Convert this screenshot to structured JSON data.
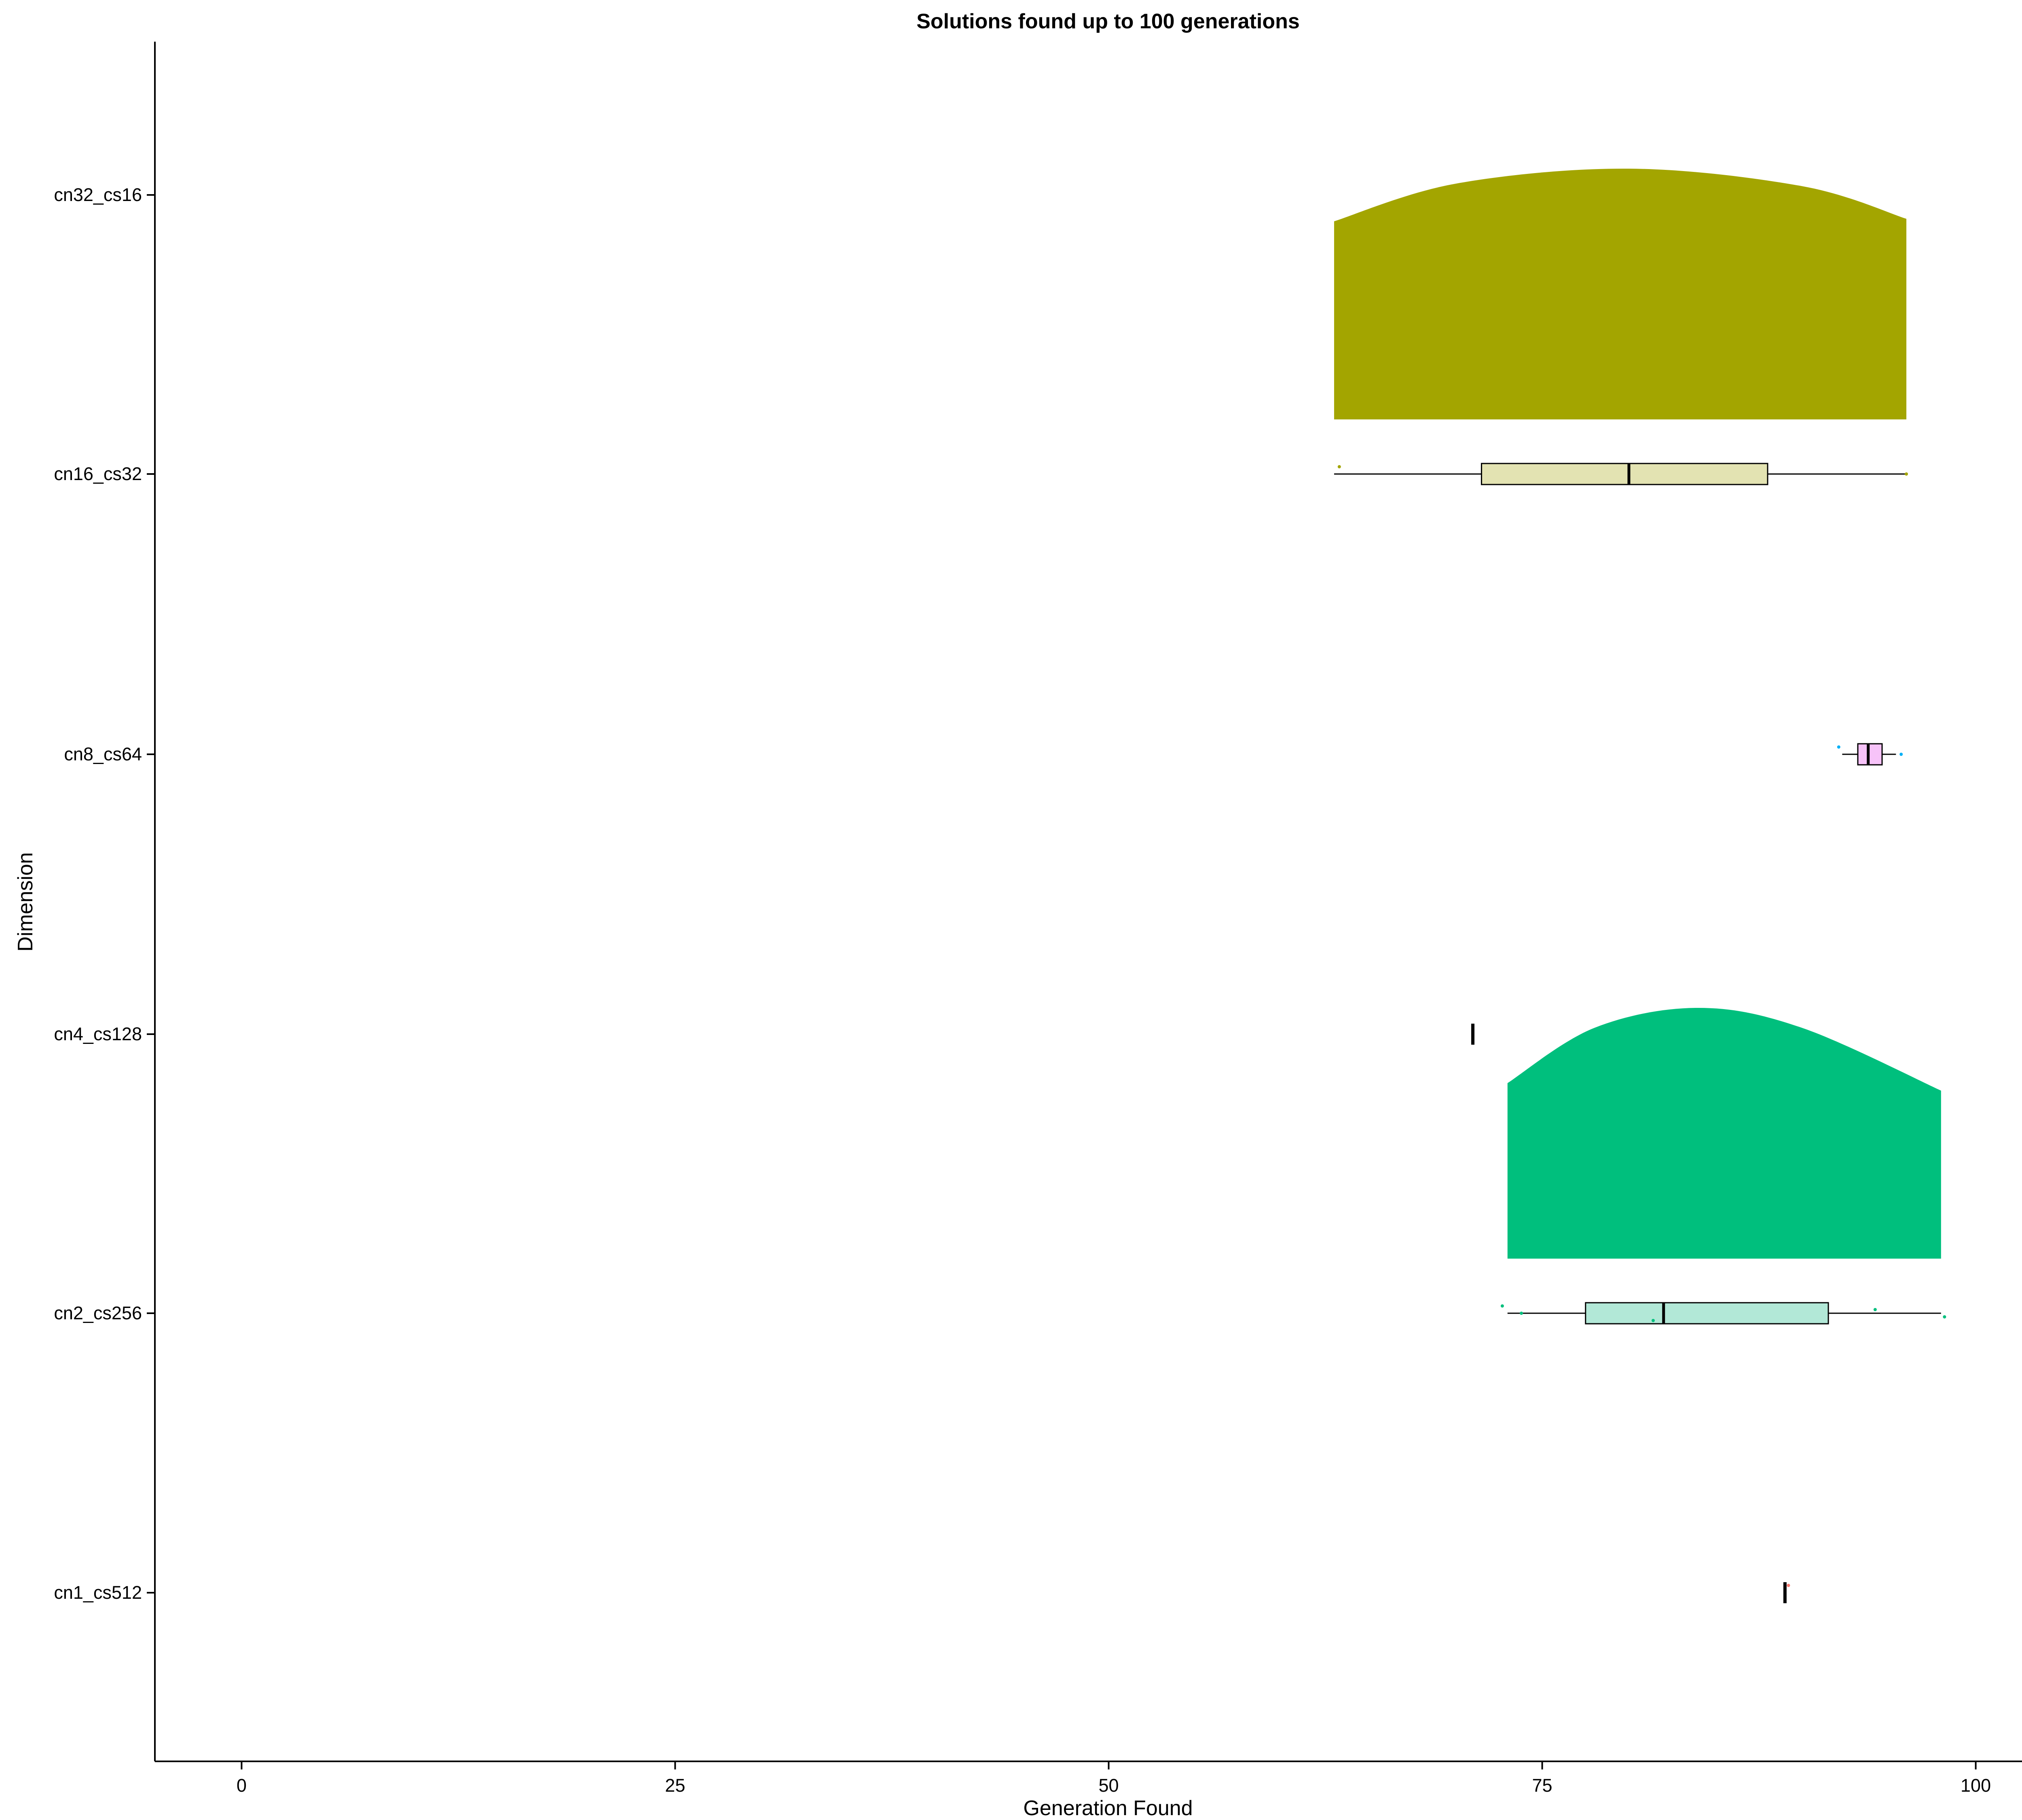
{
  "chart_data": {
    "type": "raincloud",
    "title": "Solutions found up to 100 generations",
    "xlabel": "Generation Found",
    "ylabel": "Dimension",
    "xlim": [
      -5,
      105
    ],
    "x_ticks": [
      0,
      25,
      50,
      75,
      100
    ],
    "x_tick_labels": [
      "0",
      "25",
      "50",
      "75",
      "100"
    ],
    "grid": false,
    "legend": "none",
    "categories": [
      "cn32_cs16",
      "cn16_cs32",
      "cn8_cs64",
      "cn4_cs128",
      "cn2_cs256",
      "cn1_cs512"
    ],
    "series": [
      {
        "category": "cn16_cs32",
        "density": {
          "color": "#a3a500",
          "x": [
            63,
            70,
            80,
            90,
            96
          ],
          "height": [
            0.79,
            0.94,
            1.0,
            0.93,
            0.8
          ]
        },
        "box": {
          "color": "#e3e3b2",
          "min": 63,
          "q1": 71.5,
          "median": 80,
          "q3": 88,
          "max": 96
        },
        "points": [
          {
            "x": 63.3,
            "color": "#a3a500"
          },
          {
            "x": 96,
            "color": "#a3a500"
          }
        ]
      },
      {
        "category": "cn8_cs64",
        "density": null,
        "box": {
          "color": "#f7c3f9",
          "min": 92.3,
          "q1": 93.2,
          "median": 93.8,
          "q3": 94.6,
          "max": 95.4
        },
        "points": [
          {
            "x": 92.1,
            "color": "#00b0f6"
          },
          {
            "x": 95.7,
            "color": "#00b0f6"
          }
        ]
      },
      {
        "category": "cn4_cs128",
        "density": null,
        "box": {
          "color": "#ffffff",
          "min": 71,
          "q1": 71,
          "median": 71,
          "q3": 71,
          "max": 71
        },
        "points": []
      },
      {
        "category": "cn2_cs256",
        "density": {
          "color": "#00bf7d",
          "x": [
            73,
            78,
            84,
            90,
            98
          ],
          "height": [
            0.7,
            0.92,
            1.0,
            0.92,
            0.67
          ]
        },
        "box": {
          "color": "#b2e8d7",
          "min": 73,
          "q1": 77.5,
          "median": 82,
          "q3": 91.5,
          "max": 98
        },
        "points": [
          {
            "x": 72.7,
            "color": "#00bf7d"
          },
          {
            "x": 73.8,
            "color": "#00bf7d"
          },
          {
            "x": 81.4,
            "color": "#00bf7d"
          },
          {
            "x": 94.2,
            "color": "#00bf7d"
          },
          {
            "x": 98.2,
            "color": "#00bf7d"
          }
        ]
      },
      {
        "category": "cn1_cs512",
        "density": null,
        "box": {
          "color": "#ffffff",
          "min": 89,
          "q1": 89,
          "median": 89,
          "q3": 89,
          "max": 89
        },
        "points": [
          {
            "x": 89.2,
            "color": "#f8766d"
          }
        ]
      }
    ]
  }
}
